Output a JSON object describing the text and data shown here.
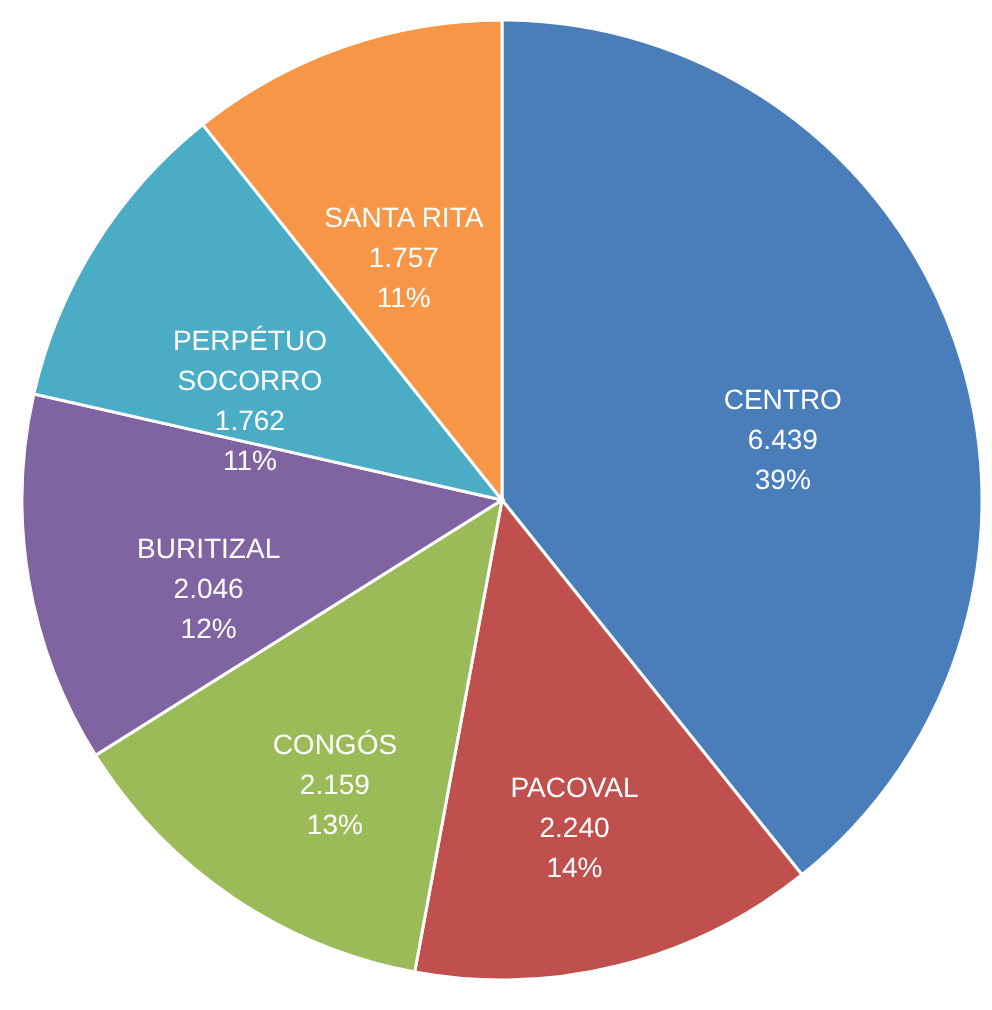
{
  "chart_data": {
    "type": "pie",
    "categories": [
      "CENTRO",
      "PACOVAL",
      "CONGÓS",
      "BURITIZAL",
      "PERPÉTUO SOCORRO",
      "SANTA RITA"
    ],
    "values": [
      6439,
      2240,
      2159,
      2046,
      1762,
      1757
    ],
    "value_labels": [
      "6.439\n39%",
      "2.240\n14%",
      "2.159\n13%",
      "2.046\n12%",
      "1.762\n11%",
      "1.757\n11%"
    ],
    "colors": [
      "#4a7ebb",
      "#c0504d",
      "#9bbb59",
      "#8064a2",
      "#4bacc6",
      "#f79646"
    ]
  }
}
